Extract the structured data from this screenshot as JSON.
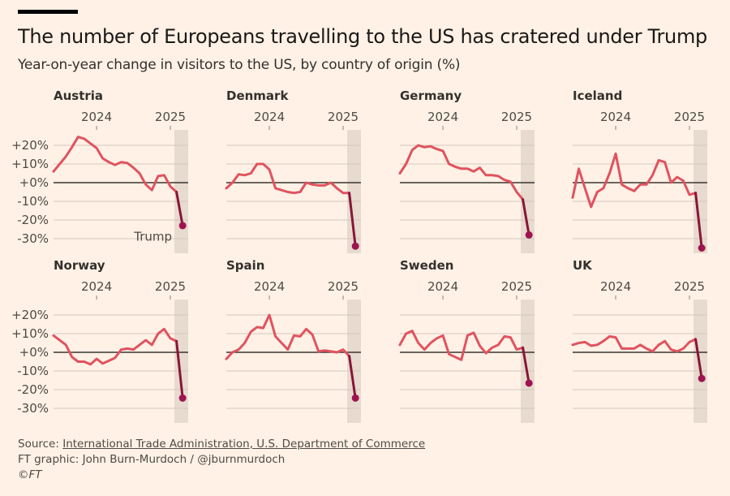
{
  "title": "The number of Europeans travelling to the US has cratered under Trump",
  "subtitle": "Year-on-year change in visitors to the US, by country of origin (%)",
  "footer": {
    "source_prefix": "Source: ",
    "source_link": "International Trade Administration, U.S. Department of Commerce",
    "credit": "FT graphic: John Burn-Murdoch / @jburnmurdoch",
    "copyright": "©FT"
  },
  "colors": {
    "background": "#fff1e5",
    "line": "#e0535f",
    "trump_segment": "#8a1538",
    "trump_dot": "#9e1450",
    "shade": "#e7dacf",
    "zero_line": "#3a3533",
    "grid": "#d3c8be"
  },
  "chart_data": {
    "type": "line",
    "layout": "small-multiples 2x4",
    "x": [
      "2023-06",
      "2023-07",
      "2023-08",
      "2023-09",
      "2023-10",
      "2023-11",
      "2023-12",
      "2024-01",
      "2024-02",
      "2024-03",
      "2024-04",
      "2024-05",
      "2024-06",
      "2024-07",
      "2024-08",
      "2024-09",
      "2024-10",
      "2024-11",
      "2024-12",
      "2025-01",
      "2025-02",
      "2025-03"
    ],
    "x_ticks": [
      {
        "date": "2024-01",
        "label": "2024"
      },
      {
        "date": "2025-01",
        "label": "2025"
      }
    ],
    "y_ticks": [
      20,
      10,
      0,
      -10,
      -20,
      -30
    ],
    "y_tick_labels": [
      "+20%",
      "+10%",
      "+0%",
      "-10%",
      "-20%",
      "-30%"
    ],
    "ylim": [
      -35,
      25
    ],
    "grid": true,
    "shaded_period": "Trump",
    "annotation": "Trump",
    "series": [
      {
        "name": "Austria",
        "values": [
          6,
          10,
          14,
          19,
          24.5,
          23.5,
          21,
          18.5,
          13,
          11,
          9.5,
          11,
          10.5,
          8,
          5,
          -1,
          -4,
          3.5,
          4,
          -2,
          -5,
          -23
        ]
      },
      {
        "name": "Denmark",
        "values": [
          -3,
          0,
          4.5,
          4,
          5,
          10,
          10,
          7,
          -3,
          -4,
          -5,
          -5.5,
          -5,
          0,
          -1,
          -1.5,
          -1.5,
          0,
          -3,
          -5.5,
          -5.5,
          -34
        ]
      },
      {
        "name": "Germany",
        "values": [
          5,
          10,
          17.5,
          20,
          19,
          19.5,
          18,
          17,
          10,
          8.5,
          7.5,
          7.5,
          6,
          8,
          4,
          4,
          3.5,
          1.5,
          0.5,
          -5,
          -9,
          -28
        ]
      },
      {
        "name": "Iceland",
        "values": [
          -8,
          7.5,
          -3,
          -13,
          -5,
          -3,
          5,
          15.5,
          -1,
          -3,
          -4.5,
          -1,
          -1,
          4,
          12,
          11,
          0,
          3,
          1,
          -6.5,
          -5.5,
          -35
        ]
      },
      {
        "name": "Norway",
        "values": [
          9,
          6.5,
          4,
          -2.5,
          -5,
          -5,
          -6.5,
          -3.5,
          -6,
          -4.5,
          -3,
          1.5,
          2,
          1.5,
          4,
          6.5,
          4,
          10,
          12.5,
          7.5,
          6,
          -24.5
        ]
      },
      {
        "name": "Spain",
        "values": [
          -3.5,
          0,
          1.5,
          5,
          11,
          13.5,
          13,
          20,
          8.5,
          5,
          1.5,
          9,
          8.5,
          12.5,
          9.5,
          0.5,
          1,
          0.5,
          0,
          1.5,
          -2,
          -24.5
        ]
      },
      {
        "name": "Sweden",
        "values": [
          4,
          10,
          11.5,
          5,
          1.5,
          5,
          7.5,
          9,
          -1,
          -2.5,
          -4,
          9,
          10.5,
          3.5,
          -0.5,
          2.5,
          4,
          8.5,
          8,
          1.5,
          2.5,
          -16.5
        ]
      },
      {
        "name": "UK",
        "values": [
          4,
          5,
          5.5,
          3.5,
          4,
          6,
          8.5,
          8,
          2,
          2,
          2,
          4,
          2,
          0.5,
          4,
          6,
          1.5,
          0.5,
          2,
          5.5,
          7,
          -14
        ]
      }
    ]
  }
}
